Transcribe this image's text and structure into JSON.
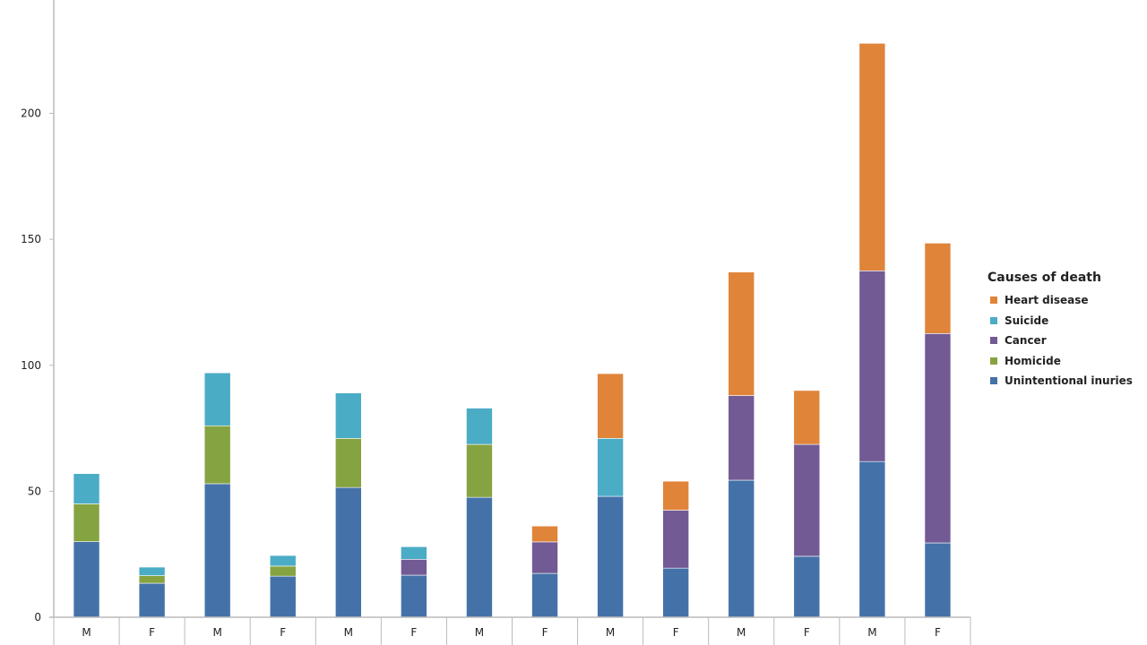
{
  "chart_data": {
    "type": "bar",
    "stacked": true,
    "title": "",
    "xlabel": "",
    "ylabel": "",
    "ylim": [
      0,
      245
    ],
    "yticks": [
      0,
      50,
      100,
      150,
      200
    ],
    "grid": false,
    "legend_position": "right",
    "legend_title": "Causes of death",
    "categories": [
      "M",
      "F",
      "M",
      "F",
      "M",
      "F",
      "M",
      "F",
      "M",
      "F",
      "M",
      "F",
      "M",
      "F"
    ],
    "series": [
      {
        "name": "Unintentional inuries",
        "color": "#4472a8",
        "values": [
          30,
          13.5,
          53,
          16.3,
          51.5,
          16.7,
          47.6,
          17.4,
          48,
          19.5,
          54.4,
          24.2,
          61.8,
          29.5
        ]
      },
      {
        "name": "Homicide",
        "color": "#86a341",
        "values": [
          15,
          3,
          23,
          4,
          19.5,
          0,
          21,
          0,
          0,
          0,
          0,
          0,
          0,
          0
        ]
      },
      {
        "name": "Cancer",
        "color": "#725a94",
        "values": [
          0,
          0,
          0,
          0,
          0,
          6.3,
          0,
          12.5,
          0,
          23,
          33.6,
          44.4,
          75.7,
          83.1
        ]
      },
      {
        "name": "Suicide",
        "color": "#4bacc6",
        "values": [
          12,
          3.4,
          21,
          4.2,
          18,
          5,
          14.4,
          0,
          23,
          0,
          0,
          0,
          0,
          0
        ]
      },
      {
        "name": "Heart disease",
        "color": "#e0843a",
        "values": [
          0,
          0,
          0,
          0,
          0,
          0,
          0,
          6.3,
          25.7,
          11.5,
          49,
          21.4,
          90.3,
          35.9
        ]
      }
    ],
    "legend_order": [
      "Heart disease",
      "Suicide",
      "Cancer",
      "Homicide",
      "Unintentional inuries"
    ]
  }
}
